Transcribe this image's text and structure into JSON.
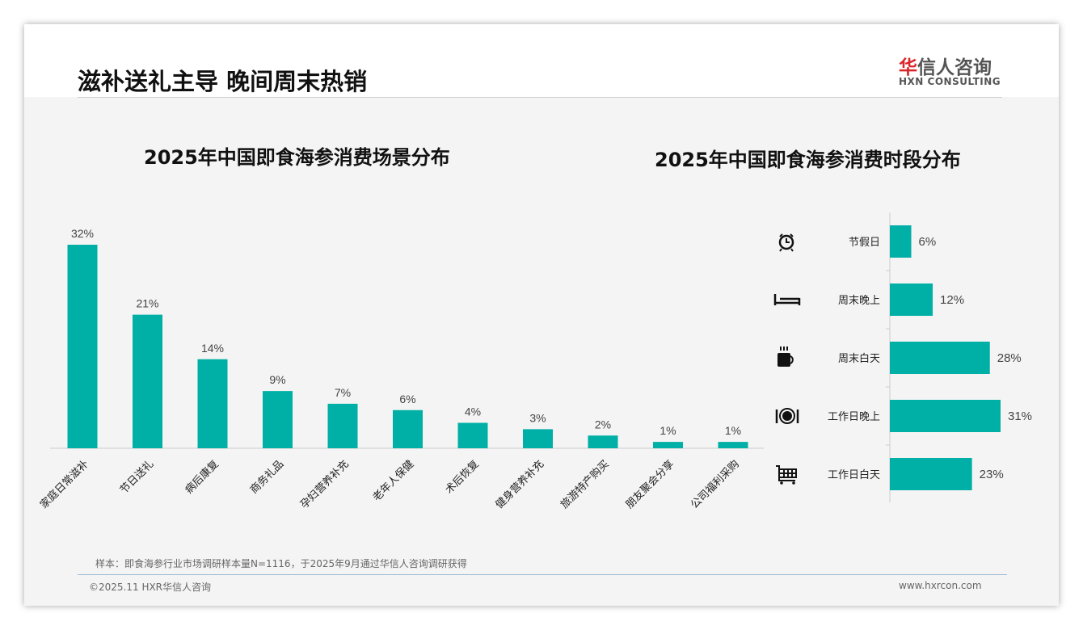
{
  "title": "滋补送礼主导 晚间周末热销",
  "logo": {
    "cn_red": "华",
    "cn": "信人咨询",
    "en": "HXN CONSULTING"
  },
  "accent": "#00afa5",
  "chart_data": [
    {
      "type": "bar",
      "title": "2025年中国即食海参消费场景分布",
      "categories": [
        "家庭日常滋补",
        "节日送礼",
        "病后康复",
        "商务礼品",
        "孕妇营养补充",
        "老年人保健",
        "术后恢复",
        "健身营养补充",
        "旅游特产购买",
        "朋友聚会分享",
        "公司福利采购"
      ],
      "values": [
        32,
        21,
        14,
        9,
        7,
        6,
        4,
        3,
        2,
        1,
        1
      ],
      "labels": [
        "32%",
        "21%",
        "14%",
        "9%",
        "7%",
        "6%",
        "4%",
        "3%",
        "2%",
        "1%",
        "1%"
      ],
      "ylim": [
        0,
        32
      ]
    },
    {
      "type": "bar",
      "orientation": "horizontal",
      "title": "2025年中国即食海参消费时段分布",
      "categories": [
        "节假日",
        "周末晚上",
        "周末白天",
        "工作日晚上",
        "工作日白天"
      ],
      "icons": [
        "alarm-clock-icon",
        "bed-icon",
        "coffee-mug-icon",
        "plate-cutlery-icon",
        "shopping-cart-icon"
      ],
      "values": [
        6,
        12,
        28,
        31,
        23
      ],
      "labels": [
        "6%",
        "12%",
        "28%",
        "31%",
        "23%"
      ]
    }
  ],
  "note": "样本：即食海参行业市场调研样本量N=1116，于2025年9月通过华信人咨询调研获得",
  "footer": {
    "left": "©2025.11 HXR华信人咨询",
    "right": "www.hxrcon.com"
  }
}
